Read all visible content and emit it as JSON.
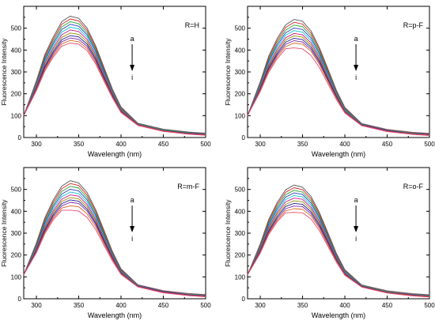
{
  "chart_data": [
    {
      "type": "line",
      "panel_label": "R=H",
      "xlabel": "Wavelength (nm)",
      "ylabel": "Fluorescence Intensity",
      "xlim": [
        285,
        500
      ],
      "ylim": [
        0,
        600
      ],
      "xticks": [
        300,
        350,
        400,
        450,
        500
      ],
      "yticks": [
        0,
        100,
        200,
        300,
        400,
        500
      ],
      "arrow": {
        "from": "a",
        "to": "i"
      },
      "x": [
        285,
        300,
        310,
        320,
        330,
        340,
        350,
        360,
        370,
        380,
        390,
        400,
        420,
        450,
        480,
        500
      ],
      "series": [
        {
          "color": "#555555",
          "values": [
            100,
            260,
            380,
            460,
            530,
            555,
            545,
            500,
            420,
            320,
            220,
            140,
            65,
            38,
            25,
            20
          ]
        },
        {
          "color": "#d62728",
          "values": [
            100,
            255,
            372,
            450,
            518,
            542,
            533,
            490,
            412,
            314,
            216,
            137,
            64,
            37,
            24,
            19
          ]
        },
        {
          "color": "#2ca02c",
          "values": [
            100,
            250,
            364,
            440,
            506,
            530,
            521,
            480,
            404,
            308,
            212,
            134,
            63,
            36,
            23,
            18
          ]
        },
        {
          "color": "#1f3fbf",
          "values": [
            100,
            245,
            356,
            430,
            494,
            518,
            509,
            470,
            396,
            302,
            208,
            131,
            62,
            35,
            22,
            17
          ]
        },
        {
          "color": "#17becf",
          "values": [
            100,
            240,
            348,
            420,
            482,
            505,
            497,
            459,
            387,
            295,
            204,
            128,
            61,
            34,
            21,
            16
          ]
        },
        {
          "color": "#c71585",
          "values": [
            100,
            235,
            340,
            410,
            470,
            492,
            485,
            448,
            378,
            288,
            200,
            125,
            60,
            33,
            20,
            15
          ]
        },
        {
          "color": "#9c8a00",
          "values": [
            100,
            230,
            332,
            400,
            458,
            478,
            472,
            437,
            369,
            281,
            196,
            122,
            59,
            32,
            19,
            14
          ]
        },
        {
          "color": "#1a1a8c",
          "values": [
            100,
            226,
            325,
            392,
            448,
            466,
            460,
            427,
            361,
            275,
            192,
            120,
            58,
            31,
            18,
            13
          ]
        },
        {
          "color": "#7a1fa2",
          "values": [
            100,
            222,
            318,
            384,
            438,
            455,
            449,
            417,
            353,
            269,
            188,
            118,
            57,
            30,
            17,
            12
          ]
        },
        {
          "color": "#d2691e",
          "values": [
            100,
            218,
            311,
            376,
            428,
            444,
            438,
            407,
            345,
            263,
            184,
            116,
            56,
            29,
            16,
            11
          ]
        },
        {
          "color": "#e8486b",
          "values": [
            100,
            214,
            304,
            368,
            418,
            432,
            427,
            397,
            337,
            257,
            180,
            114,
            55,
            28,
            15,
            10
          ]
        }
      ]
    },
    {
      "type": "line",
      "panel_label": "R=p-F",
      "xlabel": "Wavelength (nm)",
      "ylabel": "Fluorescence Intensity",
      "xlim": [
        285,
        500
      ],
      "ylim": [
        0,
        600
      ],
      "xticks": [
        300,
        350,
        400,
        450,
        500
      ],
      "yticks": [
        0,
        100,
        200,
        300,
        400,
        500
      ],
      "arrow": {
        "from": "a",
        "to": "i"
      },
      "x": [
        285,
        300,
        310,
        320,
        330,
        340,
        350,
        360,
        370,
        380,
        390,
        400,
        420,
        450,
        480,
        500
      ],
      "series": [
        {
          "color": "#555555",
          "values": [
            100,
            255,
            372,
            452,
            515,
            540,
            532,
            488,
            410,
            314,
            216,
            138,
            64,
            37,
            24,
            19
          ]
        },
        {
          "color": "#d62728",
          "values": [
            100,
            250,
            364,
            442,
            503,
            527,
            519,
            477,
            402,
            308,
            212,
            135,
            63,
            36,
            23,
            18
          ]
        },
        {
          "color": "#2ca02c",
          "values": [
            100,
            245,
            356,
            432,
            491,
            514,
            507,
            466,
            393,
            301,
            208,
            132,
            62,
            35,
            22,
            17
          ]
        },
        {
          "color": "#1f3fbf",
          "values": [
            100,
            240,
            348,
            422,
            479,
            501,
            494,
            455,
            384,
            294,
            204,
            129,
            61,
            34,
            21,
            16
          ]
        },
        {
          "color": "#17becf",
          "values": [
            100,
            235,
            340,
            412,
            468,
            489,
            482,
            444,
            375,
            287,
            200,
            126,
            60,
            33,
            20,
            15
          ]
        },
        {
          "color": "#c71585",
          "values": [
            100,
            230,
            332,
            402,
            456,
            476,
            470,
            433,
            366,
            280,
            196,
            123,
            59,
            32,
            19,
            14
          ]
        },
        {
          "color": "#9c8a00",
          "values": [
            100,
            226,
            325,
            393,
            446,
            465,
            459,
            423,
            358,
            274,
            192,
            121,
            58,
            31,
            18,
            13
          ]
        },
        {
          "color": "#1a1a8c",
          "values": [
            100,
            222,
            318,
            385,
            436,
            454,
            448,
            413,
            350,
            268,
            188,
            119,
            57,
            30,
            17,
            12
          ]
        },
        {
          "color": "#7a1fa2",
          "values": [
            100,
            218,
            311,
            377,
            426,
            443,
            437,
            404,
            342,
            262,
            184,
            117,
            56,
            29,
            16,
            11
          ]
        },
        {
          "color": "#d2691e",
          "values": [
            100,
            214,
            305,
            369,
            416,
            432,
            427,
            395,
            334,
            256,
            180,
            115,
            55,
            28,
            15,
            10
          ]
        },
        {
          "color": "#e8486b",
          "values": [
            100,
            210,
            298,
            360,
            406,
            410,
            405,
            376,
            320,
            246,
            174,
            112,
            54,
            27,
            14,
            9
          ]
        }
      ]
    },
    {
      "type": "line",
      "panel_label": "R=m-F",
      "xlabel": "Wavelength (nm)",
      "ylabel": "Fluorescence Intensity",
      "xlim": [
        285,
        500
      ],
      "ylim": [
        0,
        600
      ],
      "xticks": [
        300,
        350,
        400,
        450,
        500
      ],
      "yticks": [
        0,
        100,
        200,
        300,
        400,
        500
      ],
      "arrow": {
        "from": "a",
        "to": "i"
      },
      "x": [
        285,
        300,
        310,
        320,
        330,
        340,
        350,
        360,
        370,
        380,
        390,
        400,
        420,
        450,
        480,
        500
      ],
      "series": [
        {
          "color": "#555555",
          "values": [
            110,
            255,
            370,
            452,
            515,
            540,
            530,
            485,
            408,
            312,
            215,
            137,
            64,
            37,
            24,
            19
          ]
        },
        {
          "color": "#d62728",
          "values": [
            110,
            250,
            362,
            442,
            503,
            527,
            518,
            474,
            400,
            306,
            211,
            134,
            63,
            36,
            23,
            18
          ]
        },
        {
          "color": "#2ca02c",
          "values": [
            110,
            245,
            354,
            432,
            491,
            514,
            506,
            463,
            391,
            299,
            207,
            131,
            62,
            35,
            22,
            17
          ]
        },
        {
          "color": "#1f3fbf",
          "values": [
            110,
            240,
            346,
            422,
            479,
            501,
            493,
            452,
            382,
            292,
            203,
            128,
            61,
            34,
            21,
            16
          ]
        },
        {
          "color": "#17becf",
          "values": [
            110,
            235,
            338,
            412,
            467,
            488,
            481,
            441,
            373,
            285,
            199,
            125,
            60,
            33,
            20,
            15
          ]
        },
        {
          "color": "#c71585",
          "values": [
            110,
            230,
            330,
            402,
            455,
            475,
            469,
            430,
            364,
            278,
            195,
            122,
            59,
            32,
            19,
            14
          ]
        },
        {
          "color": "#9c8a00",
          "values": [
            110,
            226,
            323,
            393,
            445,
            463,
            457,
            420,
            356,
            272,
            191,
            120,
            58,
            31,
            18,
            13
          ]
        },
        {
          "color": "#1a1a8c",
          "values": [
            110,
            222,
            316,
            385,
            435,
            452,
            446,
            410,
            348,
            266,
            187,
            118,
            57,
            30,
            17,
            12
          ]
        },
        {
          "color": "#7a1fa2",
          "values": [
            110,
            218,
            309,
            377,
            425,
            441,
            436,
            401,
            340,
            260,
            183,
            116,
            56,
            29,
            16,
            11
          ]
        },
        {
          "color": "#d2691e",
          "values": [
            110,
            214,
            303,
            369,
            415,
            425,
            421,
            388,
            330,
            253,
            178,
            114,
            55,
            28,
            15,
            10
          ]
        },
        {
          "color": "#e8486b",
          "values": [
            110,
            210,
            297,
            361,
            405,
            405,
            401,
            372,
            317,
            244,
            172,
            111,
            54,
            27,
            14,
            9
          ]
        }
      ]
    },
    {
      "type": "line",
      "panel_label": "R=o-F",
      "xlabel": "Wavelength (nm)",
      "ylabel": "Fluorescence Intensity",
      "xlim": [
        285,
        500
      ],
      "ylim": [
        0,
        600
      ],
      "xticks": [
        300,
        350,
        400,
        450,
        500
      ],
      "yticks": [
        0,
        100,
        200,
        300,
        400,
        500
      ],
      "arrow": {
        "from": "a",
        "to": "i"
      },
      "x": [
        285,
        300,
        310,
        320,
        330,
        340,
        350,
        360,
        370,
        380,
        390,
        400,
        420,
        450,
        480,
        500
      ],
      "series": [
        {
          "color": "#555555",
          "values": [
            110,
            250,
            362,
            440,
            498,
            520,
            510,
            468,
            394,
            302,
            208,
            133,
            63,
            36,
            23,
            18
          ]
        },
        {
          "color": "#d62728",
          "values": [
            110,
            245,
            355,
            431,
            487,
            508,
            499,
            458,
            386,
            296,
            204,
            130,
            62,
            35,
            22,
            17
          ]
        },
        {
          "color": "#2ca02c",
          "values": [
            110,
            240,
            347,
            421,
            476,
            496,
            488,
            448,
            378,
            290,
            200,
            127,
            61,
            34,
            21,
            16
          ]
        },
        {
          "color": "#1f3fbf",
          "values": [
            110,
            235,
            339,
            411,
            465,
            484,
            477,
            438,
            370,
            284,
            196,
            124,
            60,
            33,
            20,
            15
          ]
        },
        {
          "color": "#17becf",
          "values": [
            110,
            231,
            332,
            402,
            454,
            472,
            466,
            428,
            362,
            278,
            192,
            121,
            59,
            32,
            19,
            14
          ]
        },
        {
          "color": "#c71585",
          "values": [
            110,
            227,
            325,
            393,
            443,
            460,
            455,
            418,
            354,
            272,
            188,
            118,
            58,
            31,
            18,
            13
          ]
        },
        {
          "color": "#9c8a00",
          "values": [
            110,
            223,
            318,
            384,
            432,
            448,
            444,
            408,
            346,
            266,
            184,
            116,
            57,
            30,
            17,
            12
          ]
        },
        {
          "color": "#1a1a8c",
          "values": [
            110,
            219,
            311,
            375,
            422,
            436,
            432,
            398,
            338,
            260,
            180,
            114,
            56,
            29,
            16,
            11
          ]
        },
        {
          "color": "#7a1fa2",
          "values": [
            110,
            215,
            305,
            367,
            412,
            424,
            421,
            389,
            330,
            254,
            176,
            112,
            55,
            28,
            15,
            10
          ]
        },
        {
          "color": "#d2691e",
          "values": [
            110,
            211,
            299,
            359,
            402,
            412,
            409,
            379,
            322,
            248,
            172,
            110,
            54,
            27,
            14,
            9
          ]
        },
        {
          "color": "#e8486b",
          "values": [
            110,
            208,
            293,
            352,
            393,
            395,
            393,
            365,
            311,
            240,
            167,
            107,
            53,
            26,
            13,
            8
          ]
        }
      ]
    }
  ]
}
